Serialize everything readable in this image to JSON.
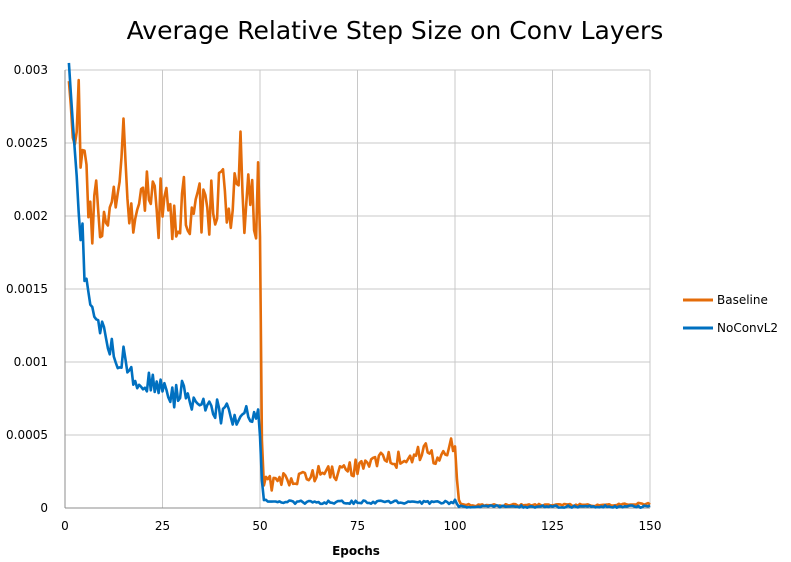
{
  "chart_data": {
    "type": "line",
    "title": "Average Relative Step Size on Conv Layers",
    "xlabel": "Epochs",
    "ylabel": "",
    "xlim": [
      0,
      150
    ],
    "ylim": [
      0,
      0.003
    ],
    "x_ticks": [
      "0",
      "25",
      "50",
      "75",
      "100",
      "125",
      "150"
    ],
    "y_ticks": [
      "0",
      "0.0005",
      "0.001",
      "0.0015",
      "0.002",
      "0.0025",
      "0.003"
    ],
    "grid": true,
    "legend_position": "right",
    "series": [
      {
        "name": "Baseline",
        "color": "#E46C0A",
        "x": [
          1,
          2,
          3,
          3.5,
          4,
          5,
          6,
          7,
          8,
          9,
          10,
          12,
          14,
          15,
          16,
          18,
          20,
          22,
          24,
          25,
          26,
          28,
          30,
          32,
          34,
          36,
          38,
          40,
          42,
          44,
          45,
          46,
          47,
          48,
          49,
          49.5,
          50,
          50.5,
          51,
          52,
          55,
          60,
          65,
          70,
          75,
          80,
          85,
          90,
          92,
          95,
          98,
          99.5,
          100,
          100.5,
          101,
          102,
          105,
          110,
          120,
          130,
          140,
          150
        ],
        "y": [
          0.0029,
          0.0026,
          0.0024,
          0.00296,
          0.0025,
          0.0024,
          0.0022,
          0.00195,
          0.0021,
          0.00205,
          0.002,
          0.0021,
          0.00205,
          0.0025,
          0.002,
          0.0021,
          0.002,
          0.0022,
          0.00205,
          0.0021,
          0.0021,
          0.002,
          0.0021,
          0.00205,
          0.002,
          0.0021,
          0.00205,
          0.0022,
          0.00205,
          0.0022,
          0.0024,
          0.0021,
          0.0023,
          0.00205,
          0.002,
          0.0022,
          0.0018,
          0.0005,
          0.0002,
          0.00017,
          0.00018,
          0.0002,
          0.00024,
          0.00025,
          0.00028,
          0.00032,
          0.00033,
          0.00035,
          0.0004,
          0.00034,
          0.00035,
          0.00045,
          0.00042,
          0.0002,
          5e-05,
          2e-05,
          2e-05,
          2e-05,
          2e-05,
          2e-05,
          2e-05,
          3e-05
        ]
      },
      {
        "name": "NoConvL2",
        "color": "#0070C0",
        "x": [
          1,
          1.5,
          2,
          3,
          4,
          4.5,
          5,
          6,
          7,
          8,
          9,
          10,
          11,
          12,
          13,
          14,
          15,
          16,
          18,
          20,
          22,
          24,
          25,
          26,
          28,
          30,
          32,
          34,
          36,
          38,
          40,
          42,
          44,
          46,
          47,
          48,
          49,
          49.5,
          50,
          50.5,
          51,
          52,
          55,
          60,
          65,
          70,
          75,
          80,
          85,
          90,
          95,
          98,
          99,
          100,
          100.5,
          101,
          105,
          110,
          120,
          130,
          140,
          150
        ],
        "y": [
          0.003,
          0.0029,
          0.0026,
          0.0023,
          0.0019,
          0.0019,
          0.0016,
          0.0015,
          0.0014,
          0.0013,
          0.0012,
          0.00125,
          0.00115,
          0.0011,
          0.00105,
          0.001,
          0.00105,
          0.00095,
          0.0009,
          0.00085,
          0.00085,
          0.0008,
          0.00085,
          0.0008,
          0.00075,
          0.0008,
          0.00075,
          0.0007,
          0.0007,
          0.0007,
          0.00065,
          0.00065,
          0.00065,
          0.0006,
          0.00065,
          0.0006,
          0.0006,
          0.00065,
          0.0005,
          0.0002,
          5e-05,
          4e-05,
          4e-05,
          4e-05,
          4e-05,
          4e-05,
          4e-05,
          4e-05,
          4e-05,
          4e-05,
          4e-05,
          4e-05,
          4e-05,
          5e-05,
          2e-05,
          1e-05,
          1e-05,
          1e-05,
          1e-05,
          1e-05,
          1e-05,
          1e-05
        ]
      }
    ]
  }
}
